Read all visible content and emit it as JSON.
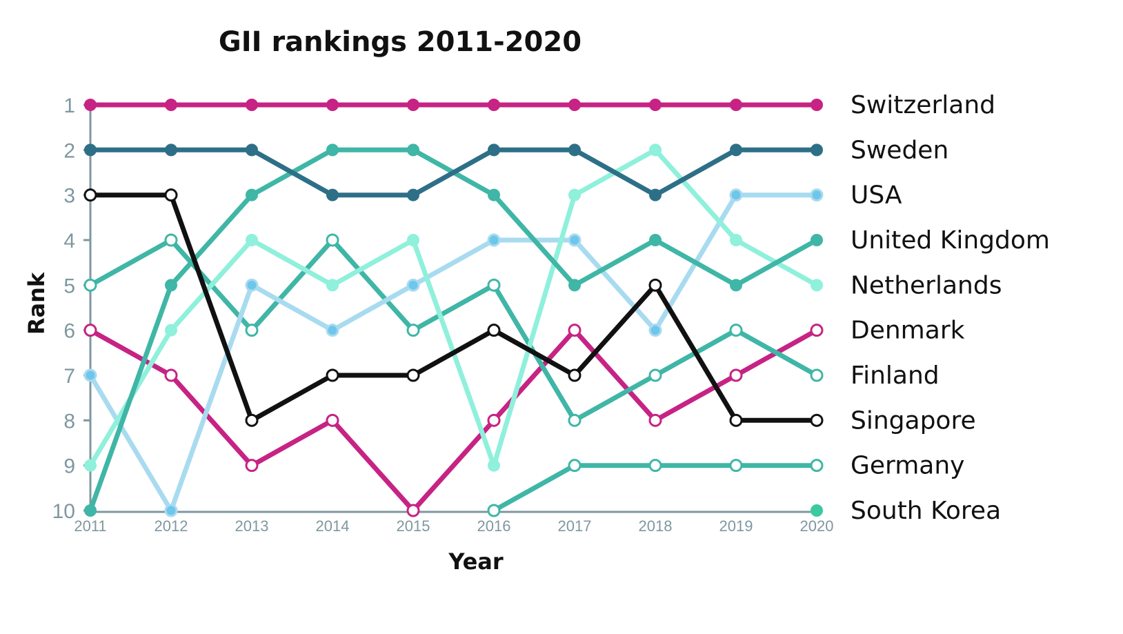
{
  "chart_data": {
    "type": "line",
    "title": "GII rankings 2011-2020",
    "xlabel": "Year",
    "ylabel": "Rank",
    "x": [
      "2011",
      "2012",
      "2013",
      "2014",
      "2015",
      "2016",
      "2017",
      "2018",
      "2019",
      "2020"
    ],
    "y_ticks": [
      "1",
      "2",
      "3",
      "4",
      "5",
      "6",
      "7",
      "8",
      "9",
      "10"
    ],
    "ylim": [
      1,
      10
    ],
    "y_inverted": true,
    "grid": false,
    "legend_position": "right",
    "series": [
      {
        "name": "Switzerland",
        "color": "#c62384",
        "marker": "filled",
        "values": [
          1,
          1,
          1,
          1,
          1,
          1,
          1,
          1,
          1,
          1
        ]
      },
      {
        "name": "Sweden",
        "color": "#2e6f88",
        "marker": "filled",
        "values": [
          2,
          2,
          2,
          3,
          3,
          2,
          2,
          3,
          2,
          2
        ]
      },
      {
        "name": "USA",
        "color": "#a8dbf0",
        "marker": "filled-blue",
        "values": [
          7,
          10,
          5,
          6,
          5,
          4,
          4,
          6,
          3,
          3
        ]
      },
      {
        "name": "United Kingdom",
        "color": "#3fb6a6",
        "marker": "filled",
        "values": [
          10,
          5,
          3,
          2,
          2,
          3,
          5,
          4,
          5,
          4
        ]
      },
      {
        "name": "Netherlands",
        "color": "#8ff0dc",
        "marker": "filled",
        "values": [
          9,
          6,
          4,
          5,
          4,
          9,
          3,
          2,
          4,
          5
        ]
      },
      {
        "name": "Denmark",
        "color": "#c62384",
        "marker": "hollow",
        "values": [
          6,
          7,
          9,
          8,
          10,
          8,
          6,
          8,
          7,
          6
        ]
      },
      {
        "name": "Finland",
        "color": "#3fb6a6",
        "marker": "hollow",
        "values": [
          5,
          4,
          6,
          4,
          6,
          5,
          8,
          7,
          6,
          7
        ]
      },
      {
        "name": "Singapore",
        "color": "#111111",
        "marker": "hollow",
        "values": [
          3,
          3,
          8,
          7,
          7,
          6,
          7,
          5,
          8,
          8
        ]
      },
      {
        "name": "Germany",
        "color": "#3fb6a6",
        "marker": "hollow",
        "values": [
          null,
          null,
          null,
          null,
          null,
          10,
          9,
          9,
          9,
          9
        ]
      },
      {
        "name": "South Korea",
        "color": "#3cc9a0",
        "marker": "filled",
        "values": [
          null,
          null,
          null,
          null,
          null,
          null,
          null,
          null,
          null,
          10
        ]
      }
    ]
  }
}
